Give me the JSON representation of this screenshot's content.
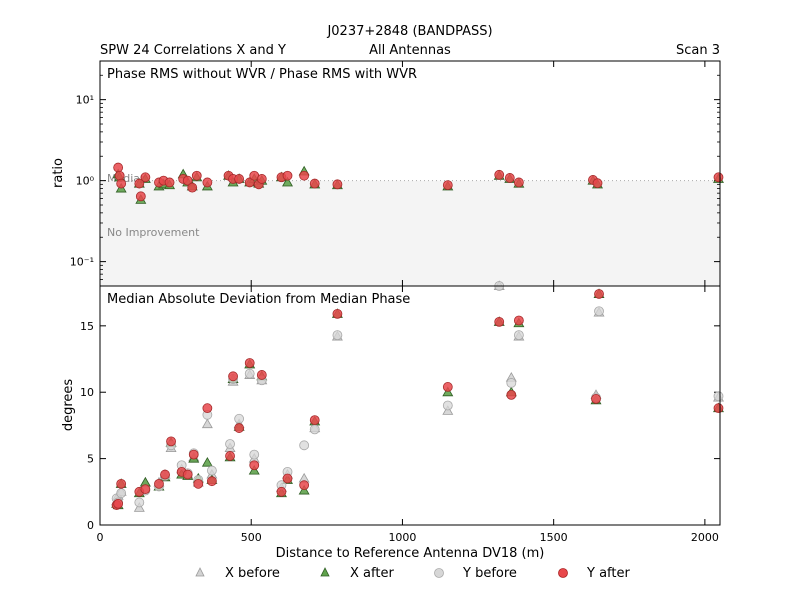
{
  "header": {
    "title": "J0237+2848 (BANDPASS)",
    "left": "SPW 24 Correlations X and Y",
    "center": "All Antennas",
    "right": "Scan 3"
  },
  "legend": {
    "placement": "bottom-center",
    "items": [
      {
        "key": "x_before",
        "label": "X before",
        "marker": "triangle",
        "color": "#d3d3d3"
      },
      {
        "key": "x_after",
        "label": "X after",
        "marker": "triangle",
        "color": "#4f9a3f"
      },
      {
        "key": "y_before",
        "label": "Y before",
        "marker": "circle",
        "color": "#d3d3d3"
      },
      {
        "key": "y_after",
        "label": "Y after",
        "marker": "circle",
        "color": "#e8474b"
      }
    ]
  },
  "chart_data": [
    {
      "type": "scatter",
      "title": "Phase RMS without WVR / Phase RMS with WVR",
      "xlabel": "",
      "ylabel": "ratio",
      "yscale": "log",
      "xlim": [
        0,
        2050
      ],
      "ylim": [
        0.05,
        30
      ],
      "y_ticks": [
        0.1,
        1,
        10
      ],
      "y_tick_labels": [
        "10⁻¹",
        "10⁰",
        "10¹"
      ],
      "reference_line": {
        "y": 1,
        "label": "Median"
      },
      "shaded_region_label": "No Improvement",
      "shaded_region": [
        0.05,
        1
      ],
      "grid": false,
      "series": [
        {
          "key": "x_after",
          "x": [
            60,
            65,
            70,
            130,
            135,
            150,
            195,
            210,
            230,
            275,
            290,
            305,
            320,
            355,
            425,
            440,
            460,
            495,
            510,
            525,
            535,
            600,
            620,
            675,
            710,
            785,
            1150,
            1320,
            1355,
            1385,
            1630,
            1645,
            2045
          ],
          "y": [
            1.2,
            1.1,
            0.8,
            0.92,
            0.58,
            1.05,
            0.85,
            0.9,
            0.88,
            1.2,
            0.95,
            0.85,
            1.1,
            0.85,
            1.15,
            0.95,
            1.05,
            0.95,
            1.05,
            0.92,
            1.0,
            1.1,
            0.95,
            1.3,
            0.9,
            0.88,
            0.85,
            1.15,
            1.05,
            0.92,
            1.0,
            0.9,
            1.05
          ]
        },
        {
          "key": "y_after",
          "x": [
            60,
            65,
            70,
            130,
            135,
            150,
            195,
            210,
            230,
            275,
            290,
            305,
            320,
            355,
            425,
            440,
            460,
            495,
            510,
            525,
            535,
            600,
            620,
            675,
            710,
            785,
            1150,
            1320,
            1355,
            1385,
            1630,
            1645,
            2045
          ],
          "y": [
            1.45,
            1.15,
            0.92,
            0.92,
            0.64,
            1.1,
            0.95,
            1.0,
            0.95,
            1.05,
            1.0,
            0.82,
            1.15,
            0.95,
            1.15,
            1.05,
            1.05,
            0.95,
            1.15,
            0.9,
            1.05,
            1.1,
            1.15,
            1.15,
            0.92,
            0.9,
            0.88,
            1.18,
            1.08,
            0.95,
            1.02,
            0.93,
            1.1
          ]
        }
      ]
    },
    {
      "type": "scatter",
      "title": "Median Absolute Deviation from Median Phase",
      "xlabel": "Distance to Reference Antenna DV18 (m)",
      "ylabel": "degrees",
      "xlim": [
        0,
        2050
      ],
      "ylim": [
        0,
        18
      ],
      "x_ticks": [
        0,
        500,
        1000,
        1500,
        2000
      ],
      "y_ticks": [
        0,
        5,
        10,
        15
      ],
      "grid": false,
      "series": [
        {
          "key": "x_before",
          "x": [
            55,
            60,
            70,
            130,
            150,
            195,
            215,
            235,
            270,
            290,
            310,
            325,
            355,
            370,
            430,
            440,
            460,
            495,
            510,
            535,
            600,
            620,
            675,
            710,
            785,
            1150,
            1320,
            1360,
            1385,
            1640,
            1650,
            2045
          ],
          "y": [
            1.8,
            2.2,
            2.5,
            1.3,
            3.2,
            3.2,
            3.8,
            5.8,
            4.2,
            3.8,
            5.1,
            3.2,
            7.6,
            3.8,
            5.8,
            10.8,
            7.6,
            11.3,
            5.0,
            10.9,
            2.8,
            3.8,
            3.5,
            7.3,
            14.2,
            8.6,
            18.4,
            11.1,
            14.2,
            9.8,
            16.0,
            9.6
          ]
        },
        {
          "key": "x_after",
          "x": [
            55,
            60,
            70,
            130,
            150,
            195,
            215,
            235,
            270,
            290,
            310,
            325,
            355,
            370,
            430,
            440,
            460,
            495,
            510,
            535,
            600,
            620,
            675,
            710,
            785,
            1150,
            1320,
            1360,
            1385,
            1640,
            1650,
            2045
          ],
          "y": [
            1.6,
            1.5,
            3.1,
            2.4,
            3.2,
            2.9,
            3.6,
            6.2,
            3.8,
            3.7,
            5.0,
            3.5,
            4.7,
            3.4,
            5.1,
            11.0,
            7.4,
            12.1,
            4.1,
            11.2,
            2.4,
            3.4,
            2.6,
            7.8,
            15.9,
            10.0,
            15.3,
            10.0,
            15.2,
            9.4,
            17.4,
            8.8
          ]
        },
        {
          "key": "y_before",
          "x": [
            55,
            60,
            70,
            130,
            150,
            195,
            215,
            235,
            270,
            290,
            310,
            325,
            355,
            370,
            430,
            440,
            460,
            495,
            510,
            535,
            600,
            620,
            675,
            710,
            785,
            1150,
            1320,
            1360,
            1385,
            1640,
            1650,
            2045
          ],
          "y": [
            2.0,
            1.7,
            2.4,
            1.7,
            2.6,
            2.9,
            3.7,
            6.0,
            4.5,
            3.9,
            5.4,
            3.4,
            8.3,
            4.1,
            6.1,
            11.0,
            8.0,
            11.4,
            5.3,
            10.9,
            3.0,
            4.0,
            6.0,
            7.2,
            14.3,
            9.0,
            18.4,
            10.7,
            14.3,
            9.6,
            16.1,
            9.7
          ]
        },
        {
          "key": "y_after",
          "x": [
            55,
            60,
            70,
            130,
            150,
            195,
            215,
            235,
            270,
            290,
            310,
            325,
            355,
            370,
            430,
            440,
            460,
            495,
            510,
            535,
            600,
            620,
            675,
            710,
            785,
            1150,
            1320,
            1360,
            1385,
            1640,
            1650,
            2045
          ],
          "y": [
            1.5,
            1.6,
            3.1,
            2.5,
            2.7,
            3.1,
            3.8,
            6.3,
            4.0,
            3.8,
            5.3,
            3.1,
            8.8,
            3.3,
            5.2,
            11.2,
            7.3,
            12.2,
            4.5,
            11.3,
            2.5,
            3.5,
            3.0,
            7.9,
            15.9,
            10.4,
            15.3,
            9.8,
            15.4,
            9.5,
            17.4,
            8.8
          ]
        }
      ]
    }
  ],
  "colors": {
    "x_before_fill": "#d3d3d3",
    "x_after_fill": "#5fa24c",
    "y_before_fill": "#d7d7d7",
    "y_after_fill": "#e8474b",
    "no_improvement_fill": "#f4f4f4",
    "annotation_text": "#888888",
    "median_line": "#aaaaaa"
  }
}
